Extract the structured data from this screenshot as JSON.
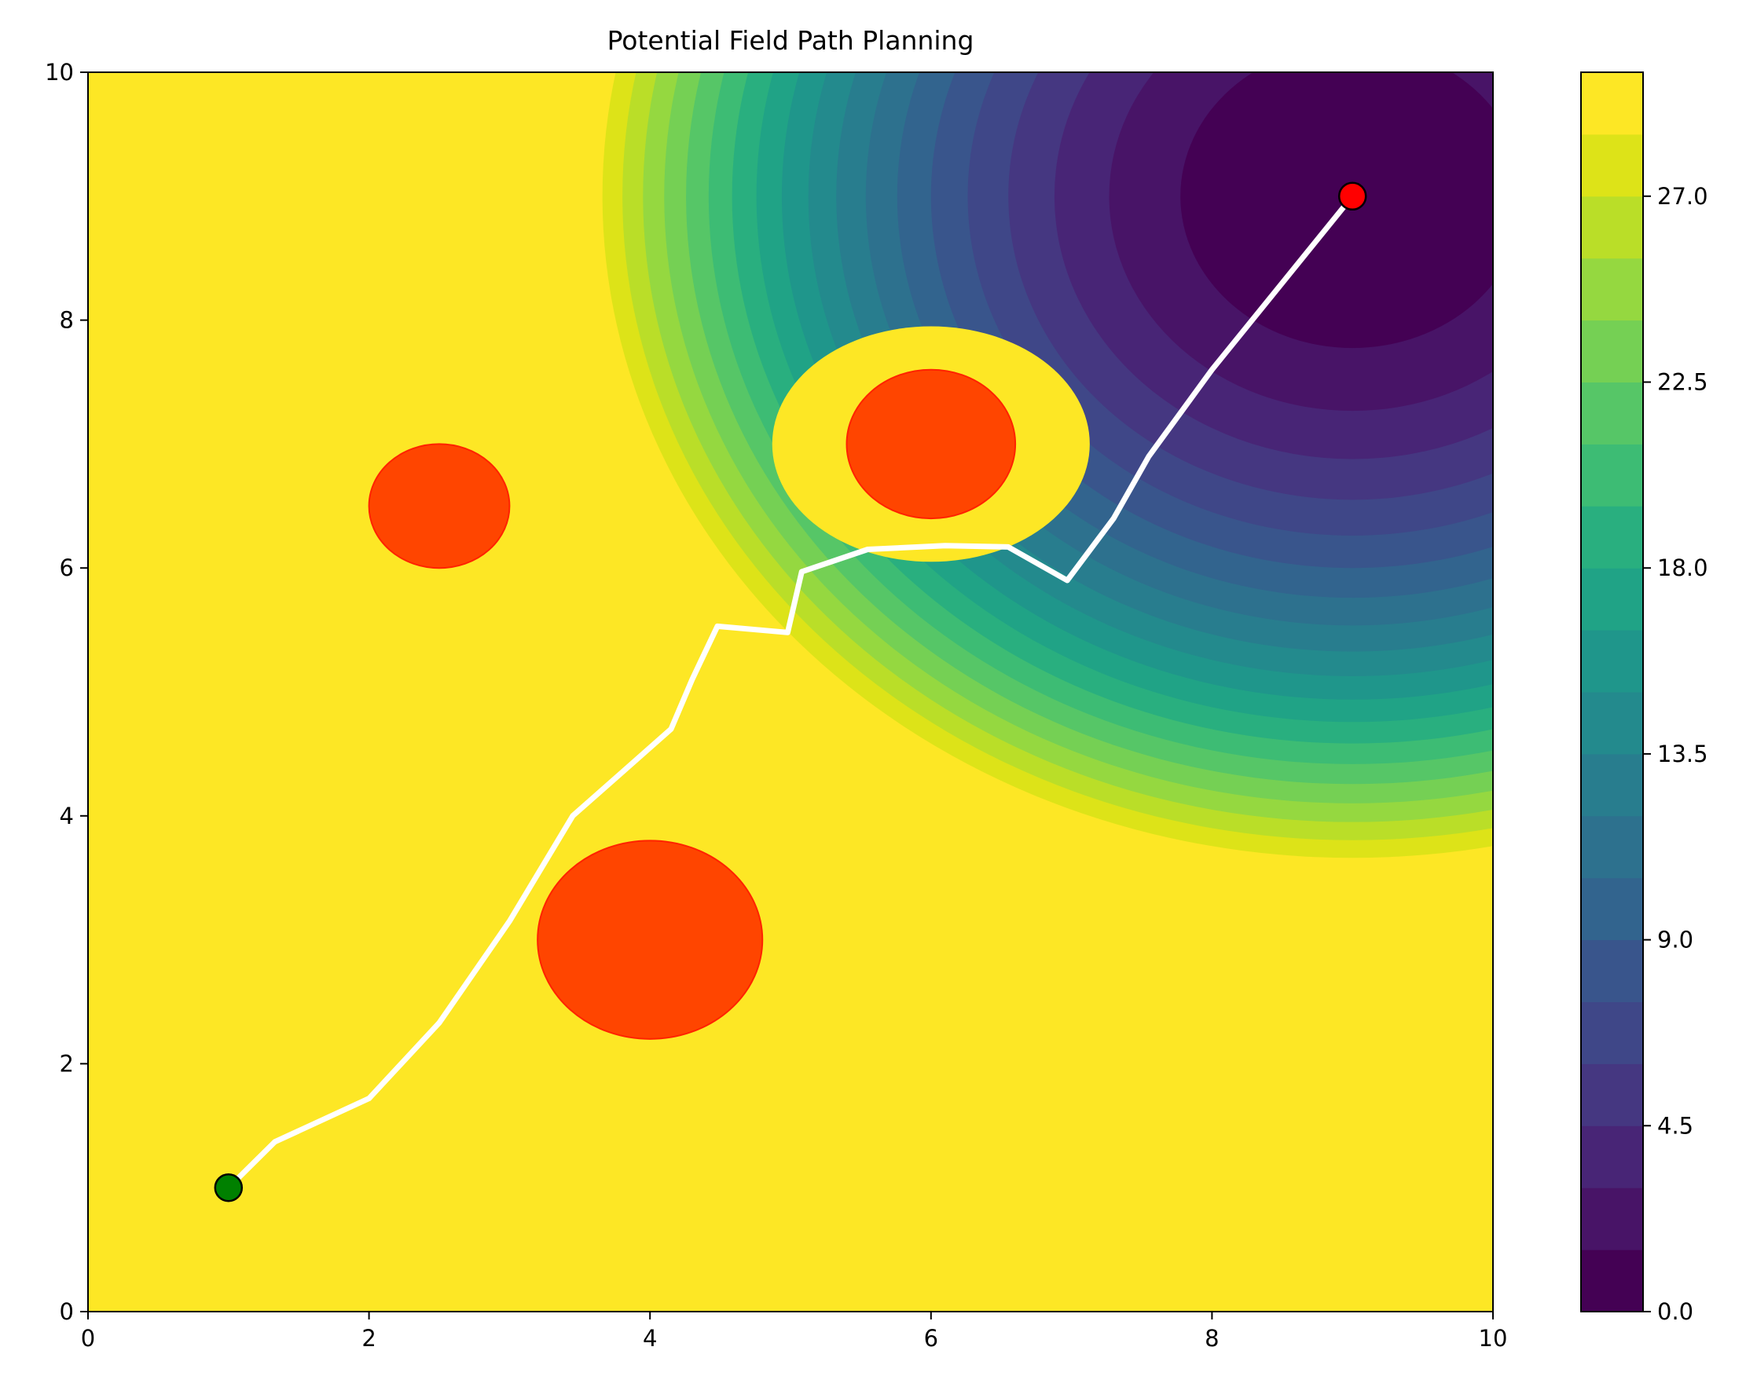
{
  "chart_data": {
    "type": "contour",
    "title": "Potential Field Path Planning",
    "xlabel": "",
    "ylabel": "",
    "xlim": [
      0,
      10
    ],
    "ylim": [
      0,
      10
    ],
    "x_ticks": [
      "0",
      "2",
      "4",
      "6",
      "8",
      "10"
    ],
    "y_ticks": [
      "0",
      "2",
      "4",
      "6",
      "8",
      "10"
    ],
    "colorbar": {
      "range": [
        0,
        30
      ],
      "levels": 20,
      "tick_labels": [
        "0.0",
        "4.5",
        "9.0",
        "13.5",
        "18.0",
        "22.5",
        "27.0"
      ]
    },
    "field": {
      "goal": [
        9,
        9
      ],
      "saturation": 30,
      "level_step": 1.5
    },
    "obstacles": [
      {
        "center": [
          4.0,
          3.0
        ],
        "radius": 0.8
      },
      {
        "center": [
          2.5,
          6.5
        ],
        "radius": 0.5
      },
      {
        "center": [
          6.0,
          7.0
        ],
        "radius": 0.6
      }
    ],
    "start": {
      "x": 1,
      "y": 1,
      "color": "#008000"
    },
    "goal": {
      "x": 9,
      "y": 9,
      "color": "#ff0000"
    },
    "path": {
      "color": "#ffffff",
      "x": [
        1.0,
        1.33,
        2.0,
        2.5,
        3.0,
        3.45,
        3.8,
        4.15,
        4.3,
        4.48,
        4.98,
        5.08,
        5.55,
        6.1,
        6.55,
        6.97,
        7.3,
        7.55,
        8.0,
        8.5,
        9.0
      ],
      "y": [
        1.0,
        1.37,
        1.72,
        2.33,
        3.15,
        4.0,
        4.35,
        4.7,
        5.1,
        5.53,
        5.48,
        5.97,
        6.15,
        6.18,
        6.17,
        5.9,
        6.4,
        6.9,
        7.6,
        8.3,
        9.0
      ]
    },
    "colors": {
      "viridis": [
        "#440154",
        "#481467",
        "#482576",
        "#453781",
        "#3f4788",
        "#39558c",
        "#32648e",
        "#2d718e",
        "#287d8e",
        "#238a8d",
        "#1f968b",
        "#20a386",
        "#29af7f",
        "#3dbc74",
        "#56c667",
        "#75d054",
        "#95d840",
        "#bade28",
        "#dde318",
        "#fde725"
      ],
      "obstacle_fill": "#ff4500",
      "obstacle_edge": "#ff2200"
    }
  }
}
